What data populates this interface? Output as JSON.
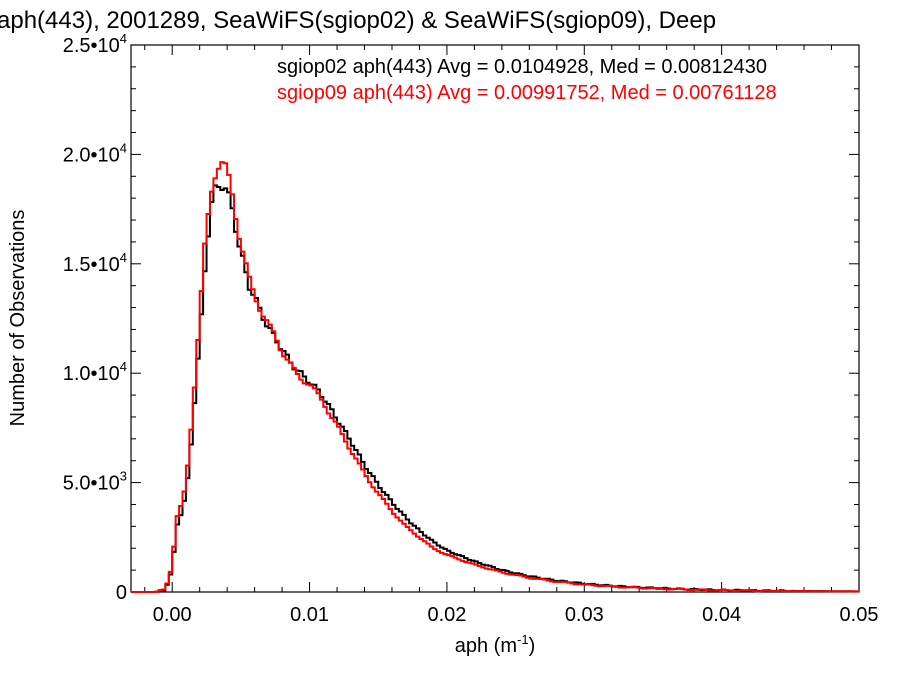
{
  "chart_data": {
    "type": "line",
    "title": "aph(443), 2001289, SeaWiFS(sgiop02) & SeaWiFS(sgiop09), Deep",
    "xlabel": "aph (m",
    "xlabel_exp": "-1",
    "xlabel_tail": ")",
    "ylabel": "Number of Observations",
    "xlim": [
      -0.003,
      0.05
    ],
    "ylim": [
      0,
      25000
    ],
    "x_ticks": [
      0.0,
      0.01,
      0.02,
      0.03,
      0.04,
      0.05
    ],
    "x_tick_labels": [
      "0.00",
      "0.01",
      "0.02",
      "0.03",
      "0.04",
      "0.05"
    ],
    "y_ticks": [
      {
        "value": 0,
        "mant": "0",
        "exp": ""
      },
      {
        "value": 5000,
        "mant": "5.0•10",
        "exp": "3"
      },
      {
        "value": 10000,
        "mant": "1.0•10",
        "exp": "4"
      },
      {
        "value": 15000,
        "mant": "1.5•10",
        "exp": "4"
      },
      {
        "value": 20000,
        "mant": "2.0•10",
        "exp": "4"
      },
      {
        "value": 25000,
        "mant": "2.5•10",
        "exp": "4"
      }
    ],
    "grid": false,
    "legend_position": "top-right",
    "series": [
      {
        "name": "sgiop02",
        "label": "sgiop02 aph(443) Avg = 0.0104928, Med = 0.00812430",
        "color": "#000000",
        "x": [
          -0.003,
          -0.0012,
          -0.0005,
          0.0,
          0.0003,
          0.0008,
          0.0012,
          0.0016,
          0.002,
          0.0024,
          0.0028,
          0.0032,
          0.0036,
          0.004,
          0.0044,
          0.0048,
          0.0052,
          0.0056,
          0.006,
          0.0065,
          0.007,
          0.0075,
          0.008,
          0.0085,
          0.009,
          0.0095,
          0.01,
          0.0105,
          0.011,
          0.0115,
          0.012,
          0.013,
          0.014,
          0.015,
          0.016,
          0.017,
          0.018,
          0.019,
          0.02,
          0.022,
          0.024,
          0.026,
          0.028,
          0.03,
          0.032,
          0.034,
          0.036,
          0.038,
          0.04,
          0.042,
          0.044,
          0.046,
          0.048,
          0.05
        ],
        "y": [
          0,
          0,
          100,
          1000,
          3000,
          3800,
          5500,
          8500,
          11500,
          15000,
          17500,
          18600,
          18600,
          18300,
          17500,
          16000,
          15000,
          14000,
          13500,
          12700,
          12100,
          11600,
          11100,
          10600,
          10200,
          9900,
          9600,
          9300,
          8900,
          8400,
          7900,
          6900,
          5800,
          4900,
          4100,
          3400,
          2800,
          2300,
          1900,
          1400,
          1000,
          720,
          520,
          380,
          280,
          210,
          160,
          120,
          90,
          70,
          55,
          45,
          35,
          30
        ]
      },
      {
        "name": "sgiop09",
        "label": "sgiop09 aph(443) Avg = 0.00991752, Med = 0.00761128",
        "color": "#ff0000",
        "x": [
          -0.003,
          -0.0012,
          -0.0005,
          0.0,
          0.0003,
          0.0008,
          0.0012,
          0.0016,
          0.002,
          0.0024,
          0.0028,
          0.0032,
          0.0036,
          0.004,
          0.0044,
          0.0048,
          0.0052,
          0.0056,
          0.006,
          0.0065,
          0.007,
          0.0075,
          0.008,
          0.0085,
          0.009,
          0.0095,
          0.01,
          0.0105,
          0.011,
          0.0115,
          0.012,
          0.013,
          0.014,
          0.015,
          0.016,
          0.017,
          0.018,
          0.019,
          0.02,
          0.022,
          0.024,
          0.026,
          0.028,
          0.03,
          0.032,
          0.034,
          0.036,
          0.038,
          0.04,
          0.042,
          0.044,
          0.046,
          0.048,
          0.05
        ],
        "y": [
          0,
          0,
          150,
          1200,
          3300,
          4200,
          6200,
          9200,
          12500,
          16000,
          18300,
          19300,
          19500,
          19300,
          18200,
          16500,
          15300,
          14300,
          13600,
          12800,
          12200,
          11700,
          11000,
          10500,
          10000,
          9700,
          9500,
          9100,
          8700,
          8100,
          7600,
          6500,
          5400,
          4500,
          3700,
          3000,
          2500,
          2000,
          1700,
          1250,
          900,
          650,
          470,
          340,
          250,
          190,
          140,
          105,
          80,
          60,
          45,
          38,
          30,
          25
        ]
      }
    ]
  }
}
